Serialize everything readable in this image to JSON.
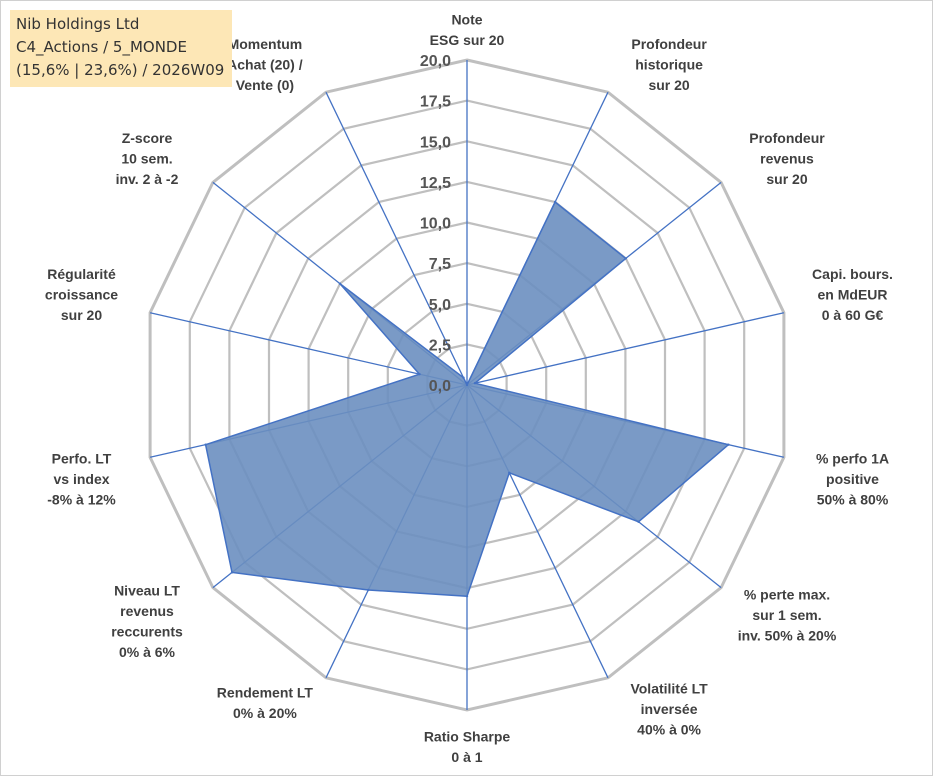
{
  "title_box": {
    "line1": "Nib Holdings Ltd",
    "line2": "C4_Actions / 5_MONDE",
    "line3": "(15,6% | 23,6%) / 2026W09"
  },
  "colors": {
    "fill": "#6b8fc0",
    "stroke": "#4472c4",
    "grid": "#bfbfbf",
    "spoke": "#4472c4",
    "title_bg": "#fde7b6"
  },
  "chart_data": {
    "type": "radar",
    "title": "",
    "rmin": 0,
    "rmax": 20,
    "tick_step": 2.5,
    "tick_labels": [
      "0,0",
      "2,5",
      "5,0",
      "7,5",
      "10,0",
      "12,5",
      "15,0",
      "17,5",
      "20,0"
    ],
    "categories": [
      [
        "Note",
        "ESG sur 20"
      ],
      [
        "Profondeur",
        "historique",
        "sur 20"
      ],
      [
        "Profondeur",
        "revenus",
        "sur 20"
      ],
      [
        "Capi. bours.",
        "en MdEUR",
        "0 à 60 G€"
      ],
      [
        "% perfo 1A",
        "positive",
        "50% à 80%"
      ],
      [
        "% perte max.",
        "sur 1 sem.",
        "inv. 50% à 20%"
      ],
      [
        "Volatilité LT",
        "inversée",
        "40% à 0%"
      ],
      [
        "Ratio Sharpe",
        "0 à 1"
      ],
      [
        "Rendement LT",
        "0% à 20%"
      ],
      [
        "Niveau LT",
        "revenus",
        "reccurents",
        "0% à 6%"
      ],
      [
        "Perfo. LT",
        "vs index",
        "-8% à 12%"
      ],
      [
        "Régularité",
        "croissance",
        "sur 20"
      ],
      [
        "Z-score",
        "10 sem.",
        "inv. 2 à -2"
      ],
      [
        "Momentum",
        "Achat (20) /",
        "Vente (0)"
      ]
    ],
    "series": [
      {
        "name": "Nib Holdings Ltd",
        "values": [
          0,
          12.5,
          12.5,
          0.5,
          16.5,
          13.5,
          6.0,
          13.0,
          14.0,
          18.5,
          16.5,
          3.0,
          10.0,
          0.5
        ]
      }
    ]
  }
}
